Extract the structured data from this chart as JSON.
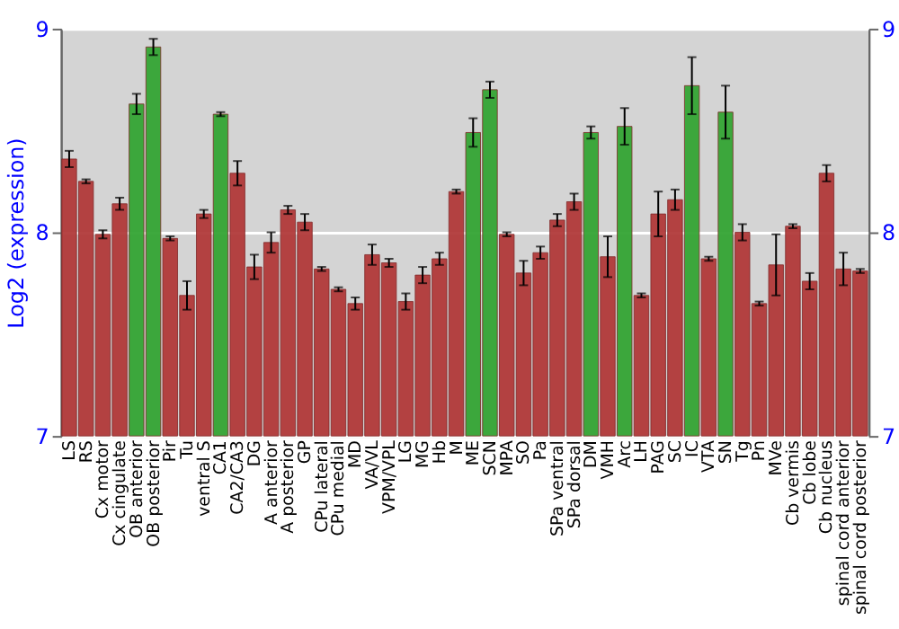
{
  "chart_data": {
    "type": "bar",
    "ylabel": "Log2 (expression)",
    "categories": [
      "LS",
      "RS",
      "Cx motor",
      "Cx cingulate",
      "OB anterior",
      "OB posterior",
      "Pir",
      "Tu",
      "ventral S",
      "CA1",
      "CA2/CA3",
      "DG",
      "A anterior",
      "A posterior",
      "GP",
      "CPu lateral",
      "CPu medial",
      "MD",
      "VA/VL",
      "VPM/VPL",
      "LG",
      "MG",
      "Hb",
      "M",
      "ME",
      "SCN",
      "MPA",
      "SO",
      "Pa",
      "SPa ventral",
      "SPa dorsal",
      "DM",
      "VMH",
      "Arc",
      "LH",
      "PAG",
      "SC",
      "IC",
      "VTA",
      "SN",
      "Tg",
      "Pn",
      "MVe",
      "Cb vermis",
      "Cb lobe",
      "Cb nucleus",
      "spinal cord anterior",
      "spinal cord posterior"
    ],
    "values": [
      8.36,
      8.25,
      7.99,
      8.14,
      8.63,
      8.91,
      7.97,
      7.69,
      8.09,
      8.58,
      8.29,
      7.83,
      7.95,
      8.11,
      8.05,
      7.82,
      7.72,
      7.65,
      7.89,
      7.85,
      7.66,
      7.79,
      7.87,
      8.2,
      8.49,
      8.7,
      7.99,
      7.8,
      7.9,
      8.06,
      8.15,
      8.49,
      7.88,
      8.52,
      7.69,
      8.09,
      8.16,
      8.72,
      7.87,
      8.59,
      8.0,
      7.65,
      7.84,
      8.03,
      7.76,
      8.29,
      7.82,
      7.81
    ],
    "errors": [
      0.04,
      0.01,
      0.02,
      0.03,
      0.05,
      0.04,
      0.01,
      0.07,
      0.02,
      0.01,
      0.06,
      0.06,
      0.05,
      0.02,
      0.04,
      0.01,
      0.01,
      0.03,
      0.05,
      0.02,
      0.04,
      0.04,
      0.03,
      0.01,
      0.07,
      0.04,
      0.01,
      0.06,
      0.03,
      0.03,
      0.04,
      0.03,
      0.1,
      0.09,
      0.01,
      0.11,
      0.05,
      0.14,
      0.01,
      0.13,
      0.04,
      0.01,
      0.15,
      0.01,
      0.04,
      0.04,
      0.08,
      0.01
    ],
    "colors": [
      "#b23a3a",
      "#b23a3a",
      "#b23a3a",
      "#b23a3a",
      "#34a534",
      "#34a534",
      "#b23a3a",
      "#b23a3a",
      "#b23a3a",
      "#34a534",
      "#b23a3a",
      "#b23a3a",
      "#b23a3a",
      "#b23a3a",
      "#b23a3a",
      "#b23a3a",
      "#b23a3a",
      "#b23a3a",
      "#b23a3a",
      "#b23a3a",
      "#b23a3a",
      "#b23a3a",
      "#b23a3a",
      "#b23a3a",
      "#34a534",
      "#34a534",
      "#b23a3a",
      "#b23a3a",
      "#b23a3a",
      "#b23a3a",
      "#b23a3a",
      "#34a534",
      "#b23a3a",
      "#34a534",
      "#b23a3a",
      "#b23a3a",
      "#b23a3a",
      "#34a534",
      "#b23a3a",
      "#34a534",
      "#b23a3a",
      "#b23a3a",
      "#b23a3a",
      "#b23a3a",
      "#b23a3a",
      "#b23a3a",
      "#b23a3a",
      "#b23a3a"
    ],
    "ylim": [
      7,
      9
    ],
    "yticks": [
      7,
      8,
      9
    ],
    "y2lim": [
      7,
      9
    ],
    "y2ticks": [
      7,
      8,
      9
    ],
    "grid": "y"
  }
}
